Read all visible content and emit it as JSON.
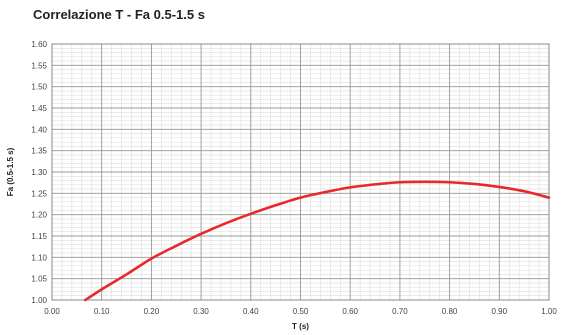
{
  "chart_data": {
    "type": "line",
    "title": "Correlazione T - Fa 0.5-1.5 s",
    "xlabel": "T (s)",
    "ylabel": "Fa (0.5-1.5 s)",
    "xlim": [
      0.0,
      1.0
    ],
    "ylim": [
      1.0,
      1.6
    ],
    "x_ticks": [
      "0.00",
      "0.10",
      "0.20",
      "0.30",
      "0.40",
      "0.50",
      "0.60",
      "0.70",
      "0.80",
      "0.90",
      "1.00"
    ],
    "y_ticks": [
      "1.00",
      "1.05",
      "1.10",
      "1.15",
      "1.20",
      "1.25",
      "1.30",
      "1.35",
      "1.40",
      "1.45",
      "1.50",
      "1.55",
      "1.60"
    ],
    "grid": true,
    "minor_grid": true,
    "series": [
      {
        "color": "#e8282a",
        "points": [
          [
            0.067,
            1.0
          ],
          [
            0.1,
            1.025
          ],
          [
            0.15,
            1.06
          ],
          [
            0.2,
            1.097
          ],
          [
            0.25,
            1.127
          ],
          [
            0.3,
            1.155
          ],
          [
            0.35,
            1.18
          ],
          [
            0.4,
            1.202
          ],
          [
            0.45,
            1.222
          ],
          [
            0.5,
            1.24
          ],
          [
            0.55,
            1.253
          ],
          [
            0.6,
            1.264
          ],
          [
            0.65,
            1.271
          ],
          [
            0.7,
            1.276
          ],
          [
            0.75,
            1.277
          ],
          [
            0.8,
            1.276
          ],
          [
            0.85,
            1.272
          ],
          [
            0.9,
            1.265
          ],
          [
            0.95,
            1.255
          ],
          [
            1.0,
            1.24
          ]
        ]
      }
    ]
  }
}
